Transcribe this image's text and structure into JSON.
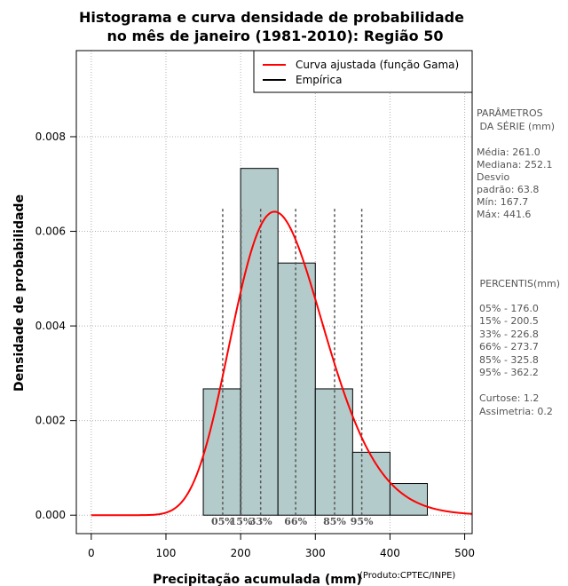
{
  "chart_data": {
    "type": "bar",
    "title_lines": [
      "Histograma e curva densidade de probabilidade",
      "no mês de janeiro (1981-2010): Região 50"
    ],
    "xlabel": "Precipitação acumulada (mm)",
    "ylabel": "Densidade de probabilidade",
    "credit": "(Produto:CPTEC/INPE)",
    "xlim": [
      -20,
      510
    ],
    "ylim": [
      -0.00039,
      0.00982
    ],
    "x_ticks": [
      0,
      100,
      200,
      300,
      400,
      500
    ],
    "x_tick_labels": [
      "0",
      "100",
      "200",
      "300",
      "400",
      "500"
    ],
    "y_ticks": [
      0,
      0.002,
      0.004,
      0.006,
      0.008
    ],
    "y_tick_labels": [
      "0.000",
      "0.002",
      "0.004",
      "0.006",
      "0.008"
    ],
    "grid": true,
    "bins": [
      {
        "x0": 150,
        "x1": 200,
        "density": 0.00267
      },
      {
        "x0": 200,
        "x1": 250,
        "density": 0.00733
      },
      {
        "x0": 250,
        "x1": 300,
        "density": 0.00533
      },
      {
        "x0": 300,
        "x1": 350,
        "density": 0.00267
      },
      {
        "x0": 350,
        "x1": 400,
        "density": 0.00133
      },
      {
        "x0": 400,
        "x1": 450,
        "density": 0.00067
      }
    ],
    "gamma_fit": {
      "shape": 16.74,
      "scale": 15.59,
      "x_start": 0,
      "x_end": 510
    },
    "percentile_lines": [
      {
        "x": 176.0,
        "label": "05%"
      },
      {
        "x": 200.5,
        "label": "15%"
      },
      {
        "x": 226.8,
        "label": "33%"
      },
      {
        "x": 273.7,
        "label": "66%"
      },
      {
        "x": 325.8,
        "label": "85%"
      },
      {
        "x": 362.2,
        "label": "95%"
      }
    ],
    "legend": {
      "position": "top-right",
      "entries": [
        {
          "label": "Curva ajustada (função Gama)",
          "color": "#ff0000"
        },
        {
          "label": "Empírica",
          "color": "#000000"
        }
      ]
    },
    "colors": {
      "bar_fill": "#b4cbcb",
      "curve": "#ff0000",
      "grid": "#b0b0b0",
      "dashed": "#555555"
    }
  },
  "side_panel": {
    "param_heading_lines": [
      "PARÂMETROS",
      " DA SÉRIE (mm)"
    ],
    "param_lines": [
      "Média:  261.0",
      "Mediana:  252.1",
      "Desvio",
      "padrão:  63.8",
      "Mín:  167.7",
      "Máx:  441.6"
    ],
    "percentis_heading": " PERCENTIS(mm)",
    "percentis_lines": [
      "05% -  176.0",
      "15% -  200.5",
      "33% -  226.8",
      "66% -  273.7",
      "85% -  325.8",
      "95% -  362.2"
    ],
    "stats_lines": [
      "Curtose:  1.2",
      "Assimetria:  0.2"
    ]
  }
}
